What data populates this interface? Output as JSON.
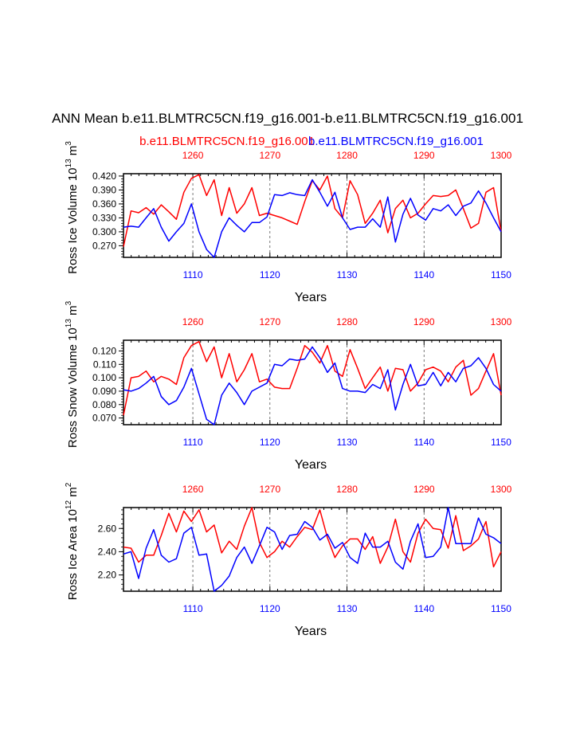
{
  "title": "ANN Mean b.e11.BLMTRC5CN.f19_g16.001-b.e11.BLMTRC5CN.f19_g16.001",
  "case_red": "b.e11.BLMTRC5CN.f19_g16.001",
  "case_blue": "b.e11.BLMTRC5CN.f19_g16.001",
  "colors": {
    "red": "#ff0000",
    "blue": "#0000ff",
    "axis": "#000000",
    "grid": "#555555"
  },
  "chart_data": [
    {
      "type": "line",
      "ylabel_main": "Ross Ice Volume 10",
      "ylabel_exp": "13",
      "ylabel_unit": " m",
      "ylabel_unit_exp": "3",
      "xlabel": "Years",
      "ylim": [
        0.245,
        0.425
      ],
      "yticks": [
        "0.420",
        "0.390",
        "0.360",
        "0.330",
        "0.300",
        "0.270"
      ],
      "bottom_xlim": [
        1101,
        1150
      ],
      "bottom_ticks": [
        "1110",
        "1120",
        "1130",
        "1140",
        "1150"
      ],
      "top_ticks": [
        "1260",
        "1270",
        "1280",
        "1290",
        "1300"
      ],
      "series": [
        {
          "name": "red",
          "values": [
            0.268,
            0.345,
            0.341,
            0.352,
            0.338,
            0.358,
            0.343,
            0.327,
            0.385,
            0.415,
            0.423,
            0.378,
            0.412,
            0.335,
            0.395,
            0.34,
            0.36,
            0.395,
            0.335,
            0.34,
            0.335,
            0.33,
            0.323,
            0.316,
            0.365,
            0.41,
            0.39,
            0.42,
            0.35,
            0.33,
            0.41,
            0.38,
            0.318,
            0.34,
            0.368,
            0.298,
            0.35,
            0.368,
            0.33,
            0.34,
            0.36,
            0.378,
            0.376,
            0.378,
            0.39,
            0.35,
            0.308,
            0.318,
            0.385,
            0.395,
            0.3
          ]
        },
        {
          "name": "blue",
          "values": [
            0.31,
            0.312,
            0.31,
            0.33,
            0.35,
            0.31,
            0.28,
            0.3,
            0.318,
            0.36,
            0.3,
            0.262,
            0.245,
            0.3,
            0.33,
            0.314,
            0.3,
            0.32,
            0.32,
            0.332,
            0.38,
            0.378,
            0.384,
            0.38,
            0.378,
            0.412,
            0.385,
            0.355,
            0.385,
            0.33,
            0.305,
            0.31,
            0.31,
            0.328,
            0.31,
            0.375,
            0.278,
            0.338,
            0.372,
            0.336,
            0.325,
            0.35,
            0.345,
            0.358,
            0.335,
            0.355,
            0.362,
            0.388,
            0.362,
            0.33,
            0.3
          ]
        }
      ]
    },
    {
      "type": "line",
      "ylabel_main": "Ross Snow Volume 10",
      "ylabel_exp": "13",
      "ylabel_unit": " m",
      "ylabel_unit_exp": "3",
      "xlabel": "Years",
      "ylim": [
        0.065,
        0.128
      ],
      "yticks": [
        "0.120",
        "0.110",
        "0.100",
        "0.090",
        "0.080",
        "0.070"
      ],
      "bottom_xlim": [
        1101,
        1150
      ],
      "bottom_ticks": [
        "1110",
        "1120",
        "1130",
        "1140",
        "1150"
      ],
      "top_ticks": [
        "1260",
        "1270",
        "1280",
        "1290",
        "1300"
      ],
      "series": [
        {
          "name": "red",
          "values": [
            0.072,
            0.1,
            0.101,
            0.105,
            0.097,
            0.101,
            0.099,
            0.095,
            0.115,
            0.124,
            0.127,
            0.112,
            0.123,
            0.1,
            0.118,
            0.097,
            0.106,
            0.118,
            0.097,
            0.099,
            0.093,
            0.092,
            0.092,
            0.107,
            0.124,
            0.119,
            0.111,
            0.124,
            0.105,
            0.101,
            0.121,
            0.107,
            0.092,
            0.1,
            0.108,
            0.09,
            0.107,
            0.106,
            0.09,
            0.096,
            0.106,
            0.108,
            0.105,
            0.097,
            0.108,
            0.113,
            0.087,
            0.092,
            0.105,
            0.118,
            0.087
          ]
        },
        {
          "name": "blue",
          "values": [
            0.091,
            0.09,
            0.092,
            0.096,
            0.101,
            0.086,
            0.08,
            0.083,
            0.093,
            0.107,
            0.088,
            0.069,
            0.065,
            0.087,
            0.096,
            0.089,
            0.08,
            0.09,
            0.093,
            0.096,
            0.11,
            0.109,
            0.114,
            0.113,
            0.114,
            0.123,
            0.115,
            0.104,
            0.111,
            0.092,
            0.09,
            0.09,
            0.089,
            0.095,
            0.092,
            0.106,
            0.076,
            0.095,
            0.11,
            0.094,
            0.095,
            0.104,
            0.094,
            0.104,
            0.097,
            0.107,
            0.109,
            0.115,
            0.107,
            0.095,
            0.09
          ]
        }
      ]
    },
    {
      "type": "line",
      "ylabel_main": "Ross Ice Area 10",
      "ylabel_exp": "12",
      "ylabel_unit": " m",
      "ylabel_unit_exp": "2",
      "xlabel": "Years",
      "ylim": [
        2.06,
        2.78
      ],
      "yticks": [
        "2.60",
        "2.40",
        "2.20"
      ],
      "bottom_xlim": [
        1101,
        1150
      ],
      "bottom_ticks": [
        "1110",
        "1120",
        "1130",
        "1140",
        "1150"
      ],
      "top_ticks": [
        "1260",
        "1270",
        "1280",
        "1290",
        "1300"
      ],
      "series": [
        {
          "name": "red",
          "values": [
            2.44,
            2.43,
            2.31,
            2.37,
            2.37,
            2.54,
            2.73,
            2.57,
            2.75,
            2.66,
            2.76,
            2.57,
            2.63,
            2.39,
            2.49,
            2.42,
            2.62,
            2.78,
            2.48,
            2.35,
            2.4,
            2.49,
            2.44,
            2.53,
            2.61,
            2.59,
            2.76,
            2.52,
            2.35,
            2.45,
            2.51,
            2.51,
            2.42,
            2.53,
            2.3,
            2.44,
            2.68,
            2.4,
            2.31,
            2.56,
            2.68,
            2.6,
            2.59,
            2.43,
            2.71,
            2.41,
            2.45,
            2.51,
            2.66,
            2.27,
            2.4
          ]
        },
        {
          "name": "blue",
          "values": [
            2.38,
            2.4,
            2.17,
            2.43,
            2.59,
            2.37,
            2.31,
            2.34,
            2.56,
            2.61,
            2.37,
            2.38,
            2.06,
            2.11,
            2.19,
            2.35,
            2.44,
            2.3,
            2.45,
            2.61,
            2.57,
            2.42,
            2.54,
            2.55,
            2.66,
            2.61,
            2.5,
            2.55,
            2.43,
            2.48,
            2.35,
            2.3,
            2.56,
            2.44,
            2.44,
            2.49,
            2.31,
            2.25,
            2.49,
            2.64,
            2.35,
            2.36,
            2.44,
            2.78,
            2.47,
            2.47,
            2.47,
            2.69,
            2.55,
            2.52,
            2.47
          ]
        }
      ]
    }
  ]
}
